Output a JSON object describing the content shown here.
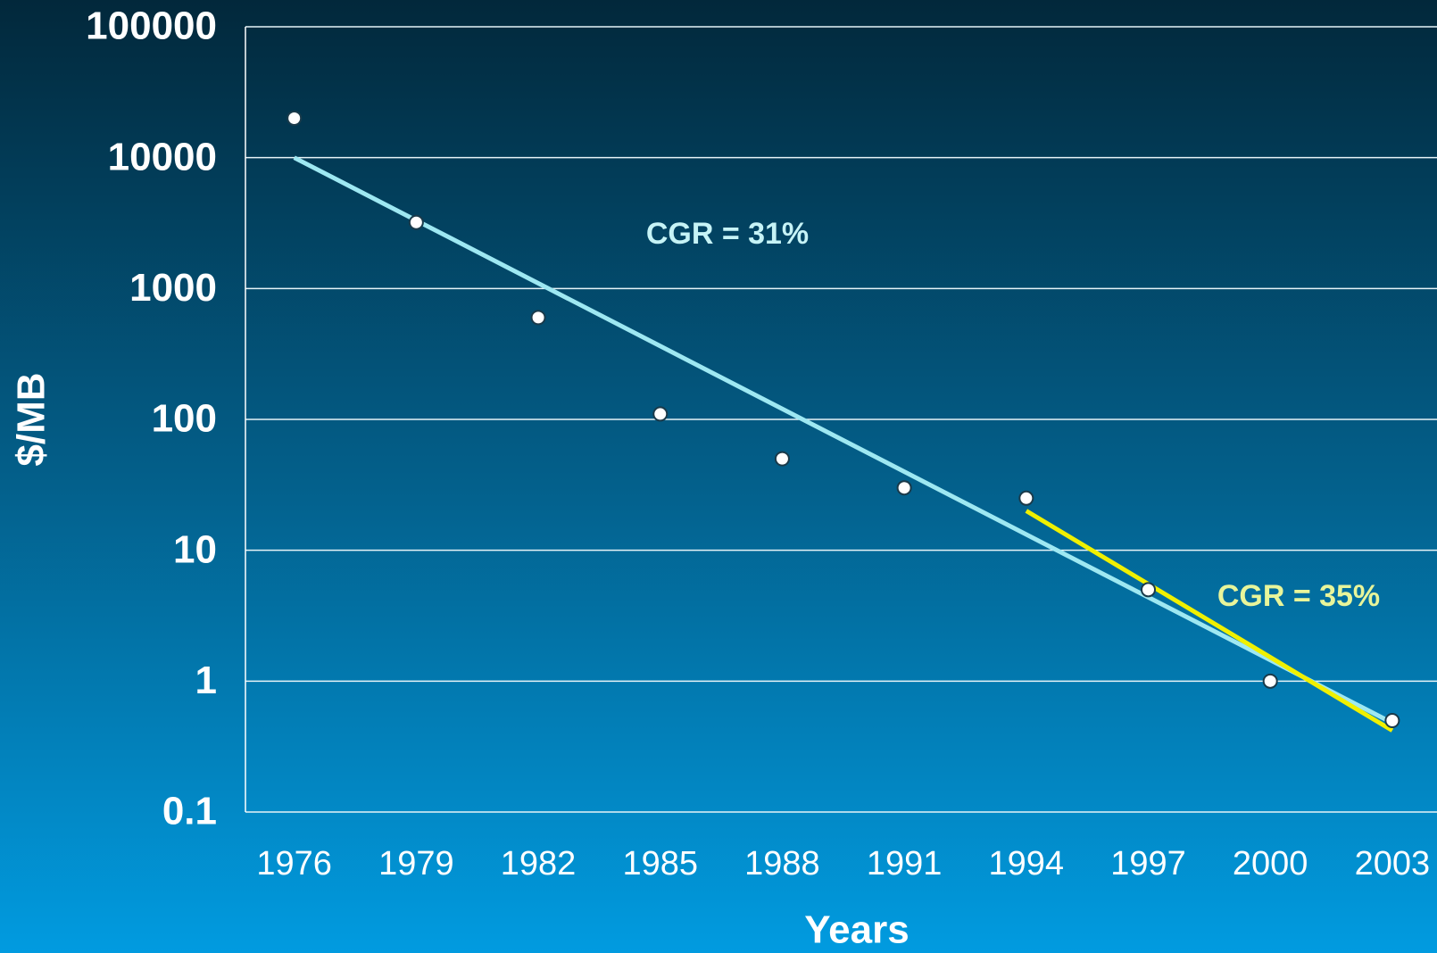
{
  "chart_data": {
    "type": "scatter",
    "xlabel": "Years",
    "ylabel": "$/MB",
    "x": [
      1976,
      1979,
      1982,
      1985,
      1988,
      1991,
      1994,
      1997,
      2000,
      2003
    ],
    "series": [
      {
        "color": "#ffffff",
        "values": [
          20000,
          3200,
          600,
          110,
          50,
          30,
          25,
          5,
          1,
          0.5
        ]
      }
    ],
    "trend_lines": [
      {
        "color": "#9ee8f2",
        "x": [
          1976,
          2003
        ],
        "values": [
          10000,
          0.48
        ]
      },
      {
        "color": "#f0f000",
        "x": [
          1994,
          2003
        ],
        "values": [
          20,
          0.42
        ]
      }
    ],
    "annotations": [
      {
        "text": "CGR = 31%",
        "color": "#c6f3f6"
      },
      {
        "text": "CGR = 35%",
        "color": "#e8f59a"
      }
    ],
    "xlim": [
      1974.8,
      2004.1
    ],
    "xticks": [
      1976,
      1979,
      1982,
      1985,
      1988,
      1991,
      1994,
      1997,
      2000,
      2003
    ],
    "ylim": [
      0.1,
      100000
    ],
    "yticks": [
      0.1,
      1,
      10,
      100,
      1000,
      10000,
      100000
    ],
    "log_y": true,
    "grid": true
  }
}
